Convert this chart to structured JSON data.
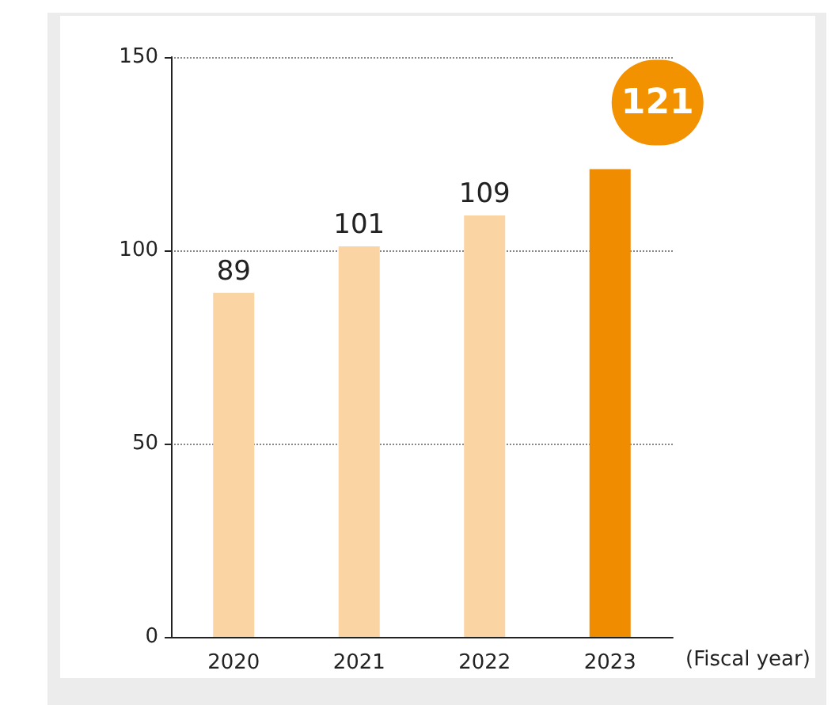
{
  "chart_data": {
    "type": "bar",
    "xlabel": "(Fiscal year)",
    "categories": [
      "2020",
      "2021",
      "2022",
      "2023"
    ],
    "values": [
      89,
      101,
      109,
      121
    ],
    "colors": [
      "#fbd4a3",
      "#fbd4a3",
      "#fbd4a3",
      "#f08c00"
    ],
    "value_labels": [
      "89",
      "101",
      "109",
      null
    ],
    "annotations": [
      {
        "text": "121",
        "x": "2023",
        "y": 121
      }
    ],
    "ylim": [
      0,
      150
    ],
    "yticks": [
      0,
      50,
      100,
      150
    ],
    "grid": "y"
  }
}
